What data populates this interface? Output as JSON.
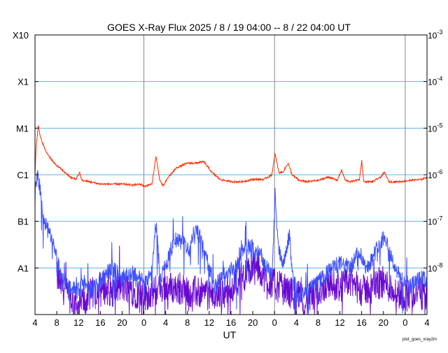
{
  "chart_data": {
    "type": "line",
    "title": "GOES X-Ray Flux   2025  /  8  /  19   04:00 --   8  /  22   04:00   UT",
    "xlabel": "UT",
    "ylabel": "",
    "x_range_hours": [
      0,
      72
    ],
    "x_ticks": [
      {
        "hour": 0,
        "label": "4"
      },
      {
        "hour": 4,
        "label": "8"
      },
      {
        "hour": 8,
        "label": "12"
      },
      {
        "hour": 12,
        "label": "16"
      },
      {
        "hour": 16,
        "label": "20"
      },
      {
        "hour": 20,
        "label": "0"
      },
      {
        "hour": 24,
        "label": "4"
      },
      {
        "hour": 28,
        "label": "8"
      },
      {
        "hour": 32,
        "label": "12"
      },
      {
        "hour": 36,
        "label": "16"
      },
      {
        "hour": 40,
        "label": "20"
      },
      {
        "hour": 44,
        "label": "0"
      },
      {
        "hour": 48,
        "label": "4"
      },
      {
        "hour": 52,
        "label": "8"
      },
      {
        "hour": 56,
        "label": "12"
      },
      {
        "hour": 60,
        "label": "16"
      },
      {
        "hour": 64,
        "label": "20"
      },
      {
        "hour": 68,
        "label": "0"
      },
      {
        "hour": 72,
        "label": "4"
      }
    ],
    "day_boundaries_hours": [
      20,
      44,
      68
    ],
    "ylim_log10": [
      -9,
      -3
    ],
    "y_class_labels": [
      {
        "log10": -3,
        "label": "X10"
      },
      {
        "log10": -4,
        "label": "X1"
      },
      {
        "log10": -5,
        "label": "M1"
      },
      {
        "log10": -6,
        "label": "C1"
      },
      {
        "log10": -7,
        "label": "B1"
      },
      {
        "log10": -8,
        "label": "A1"
      }
    ],
    "y_flux_labels": [
      {
        "log10": -3,
        "base": "10",
        "exp": "-3"
      },
      {
        "log10": -4,
        "base": "10",
        "exp": "-4"
      },
      {
        "log10": -5,
        "base": "10",
        "exp": "-5"
      },
      {
        "log10": -6,
        "base": "10",
        "exp": "-6"
      },
      {
        "log10": -7,
        "base": "10",
        "exp": "-7"
      },
      {
        "log10": -8,
        "base": "10",
        "exp": "-8"
      }
    ],
    "gridlines_log10": [
      -4,
      -5,
      -6,
      -7,
      -8
    ],
    "series": [
      {
        "color": "#ff2a00",
        "description_points_hour_log10": [
          [
            0,
            -6.0
          ],
          [
            0.2,
            -5.4
          ],
          [
            0.6,
            -4.95
          ],
          [
            1.0,
            -5.2
          ],
          [
            2,
            -5.5
          ],
          [
            3.5,
            -5.75
          ],
          [
            5,
            -5.9
          ],
          [
            6.5,
            -6.05
          ],
          [
            7.5,
            -6.1
          ],
          [
            8.2,
            -5.95
          ],
          [
            8.6,
            -6.12
          ],
          [
            10,
            -6.15
          ],
          [
            12,
            -6.2
          ],
          [
            14,
            -6.2
          ],
          [
            16,
            -6.2
          ],
          [
            18,
            -6.22
          ],
          [
            19.5,
            -6.2
          ],
          [
            20,
            -6.25
          ],
          [
            21.5,
            -6.2
          ],
          [
            22.2,
            -5.6
          ],
          [
            22.9,
            -6.1
          ],
          [
            23.5,
            -6.25
          ],
          [
            24.5,
            -6.05
          ],
          [
            26,
            -5.85
          ],
          [
            28,
            -5.75
          ],
          [
            29.5,
            -5.75
          ],
          [
            31,
            -5.72
          ],
          [
            32.5,
            -5.95
          ],
          [
            34,
            -6.1
          ],
          [
            36,
            -6.15
          ],
          [
            38,
            -6.15
          ],
          [
            40,
            -6.1
          ],
          [
            42,
            -6.1
          ],
          [
            43.5,
            -6.0
          ],
          [
            44.1,
            -5.55
          ],
          [
            44.8,
            -5.95
          ],
          [
            45.5,
            -5.95
          ],
          [
            46.5,
            -5.75
          ],
          [
            47.2,
            -6.0
          ],
          [
            48.5,
            -6.12
          ],
          [
            50,
            -6.15
          ],
          [
            52,
            -6.12
          ],
          [
            54,
            -6.05
          ],
          [
            55.5,
            -6.12
          ],
          [
            56.3,
            -5.9
          ],
          [
            57,
            -6.12
          ],
          [
            58,
            -6.15
          ],
          [
            59.6,
            -6.1
          ],
          [
            60,
            -5.7
          ],
          [
            60.4,
            -6.15
          ],
          [
            62,
            -6.15
          ],
          [
            63.5,
            -6.05
          ],
          [
            64.2,
            -5.95
          ],
          [
            65,
            -6.15
          ],
          [
            67,
            -6.15
          ],
          [
            69,
            -6.12
          ],
          [
            71,
            -6.1
          ],
          [
            72,
            -6.05
          ]
        ]
      },
      {
        "color": "#3d50ff",
        "description_points_hour_log10": [
          [
            0,
            -6.5
          ],
          [
            0.3,
            -6.0
          ],
          [
            0.8,
            -6.2
          ],
          [
            1.6,
            -7.0
          ],
          [
            2.8,
            -7.3
          ],
          [
            4,
            -7.8
          ],
          [
            5,
            -8.3
          ],
          [
            6.5,
            -8.4
          ],
          [
            8,
            -8.5
          ],
          [
            9,
            -8.3
          ],
          [
            10,
            -8.5
          ],
          [
            12,
            -8.3
          ],
          [
            14,
            -8.0
          ],
          [
            16,
            -8.2
          ],
          [
            18,
            -8.1
          ],
          [
            20,
            -8.3
          ],
          [
            21.5,
            -8.1
          ],
          [
            22.2,
            -7.0
          ],
          [
            23,
            -8.2
          ],
          [
            24,
            -8.0
          ],
          [
            25.5,
            -7.4
          ],
          [
            27,
            -7.45
          ],
          [
            28.5,
            -7.6
          ],
          [
            29.5,
            -7.1
          ],
          [
            30.5,
            -7.4
          ],
          [
            31.5,
            -7.8
          ],
          [
            33,
            -8.4
          ],
          [
            35,
            -8.1
          ],
          [
            37,
            -8.0
          ],
          [
            38.5,
            -7.5
          ],
          [
            40,
            -7.6
          ],
          [
            42,
            -7.8
          ],
          [
            43.5,
            -8.2
          ],
          [
            44.1,
            -6.45
          ],
          [
            44.6,
            -7.5
          ],
          [
            45.5,
            -8.0
          ],
          [
            46.7,
            -7.3
          ],
          [
            47.5,
            -8.3
          ],
          [
            49,
            -8.6
          ],
          [
            51,
            -8.4
          ],
          [
            53,
            -8.2
          ],
          [
            54.5,
            -8.0
          ],
          [
            56,
            -7.9
          ],
          [
            58,
            -8.0
          ],
          [
            59.5,
            -7.6
          ],
          [
            60.8,
            -8.0
          ],
          [
            62,
            -7.8
          ],
          [
            63,
            -7.5
          ],
          [
            64.3,
            -7.3
          ],
          [
            65.5,
            -7.8
          ],
          [
            67,
            -8.2
          ],
          [
            69,
            -8.4
          ],
          [
            71,
            -8.2
          ],
          [
            72,
            -8.3
          ]
        ]
      },
      {
        "color": "#6a0ad0",
        "description_points_hour_log10": [
          [
            4,
            -8.2
          ],
          [
            6,
            -8.6
          ],
          [
            8,
            -8.8
          ],
          [
            10,
            -8.6
          ],
          [
            12,
            -8.4
          ],
          [
            14,
            -8.5
          ],
          [
            16,
            -8.4
          ],
          [
            18,
            -8.5
          ],
          [
            20,
            -8.6
          ],
          [
            22,
            -8.5
          ],
          [
            24,
            -8.4
          ],
          [
            33,
            -8.6
          ],
          [
            35,
            -8.5
          ],
          [
            37,
            -8.3
          ],
          [
            39,
            -8.1
          ],
          [
            41,
            -8.0
          ],
          [
            43,
            -8.3
          ],
          [
            50,
            -8.7
          ],
          [
            52,
            -8.5
          ],
          [
            54,
            -8.3
          ],
          [
            56,
            -8.4
          ],
          [
            58,
            -8.3
          ],
          [
            60,
            -8.5
          ],
          [
            62,
            -8.4
          ],
          [
            64,
            -8.3
          ],
          [
            66,
            -8.5
          ],
          [
            68,
            -8.6
          ],
          [
            70,
            -8.5
          ],
          [
            72,
            -8.6
          ]
        ]
      }
    ]
  },
  "footer_text": "plot_goes_xray2m"
}
